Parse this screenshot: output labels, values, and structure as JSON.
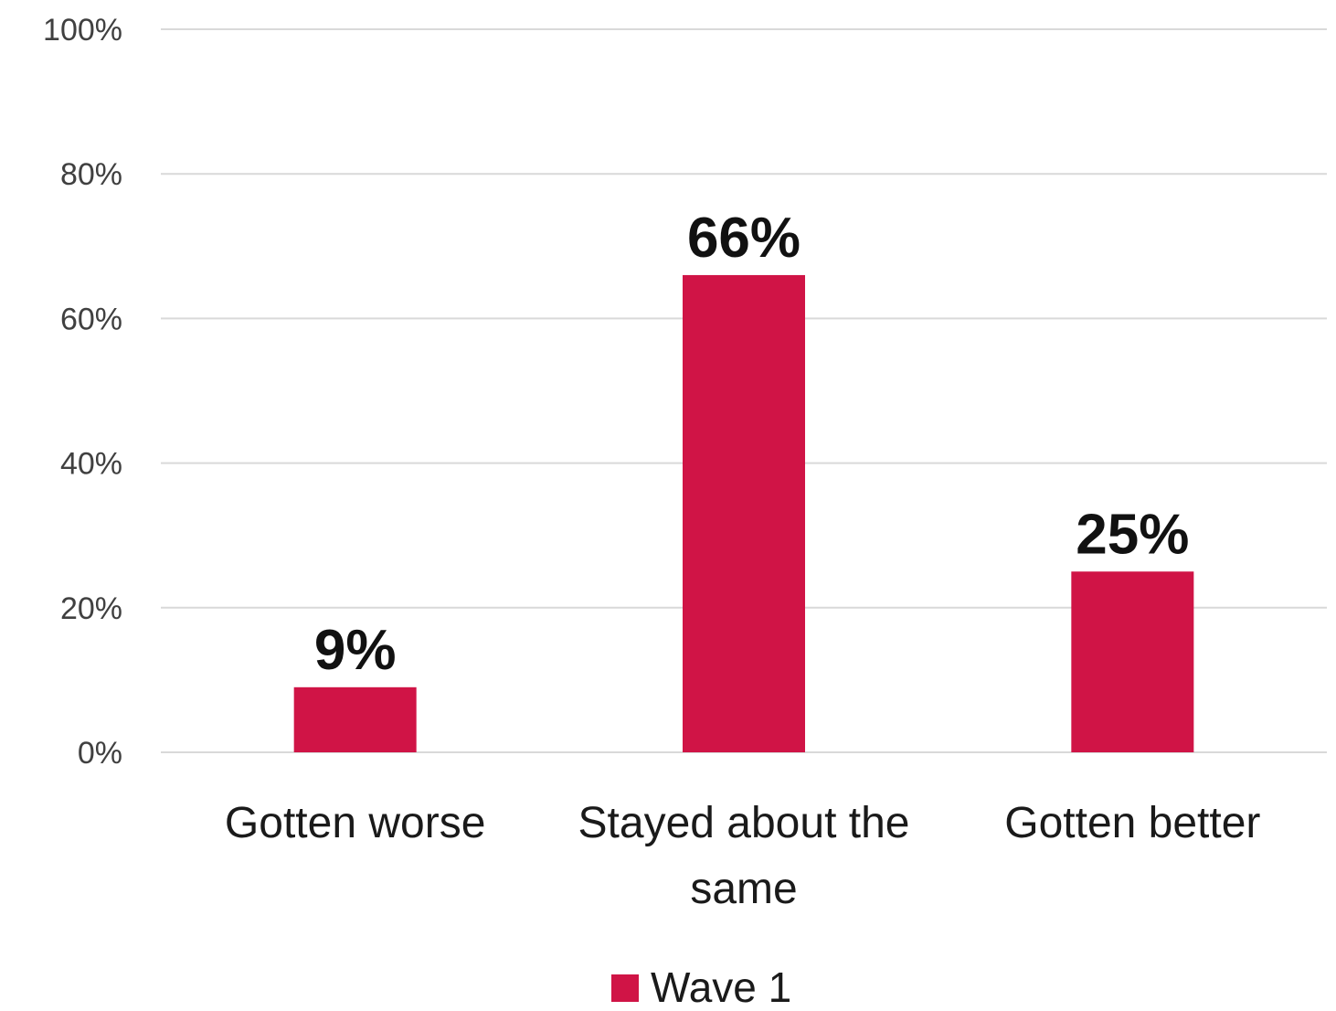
{
  "chart_data": {
    "type": "bar",
    "categories": [
      [
        "Gotten worse"
      ],
      [
        "Stayed about the",
        "same"
      ],
      [
        "Gotten better"
      ]
    ],
    "series": [
      {
        "name": "Wave 1",
        "values": [
          9,
          66,
          25
        ],
        "data_labels": [
          "9%",
          "66%",
          "25%"
        ],
        "color": "#d01446"
      }
    ],
    "ylim": [
      0,
      100
    ],
    "yticks": [
      0,
      20,
      40,
      60,
      80,
      100
    ],
    "ytick_labels": [
      "0%",
      "20%",
      "40%",
      "60%",
      "80%",
      "100%"
    ],
    "grid": true,
    "legend_position": "bottom-center"
  }
}
